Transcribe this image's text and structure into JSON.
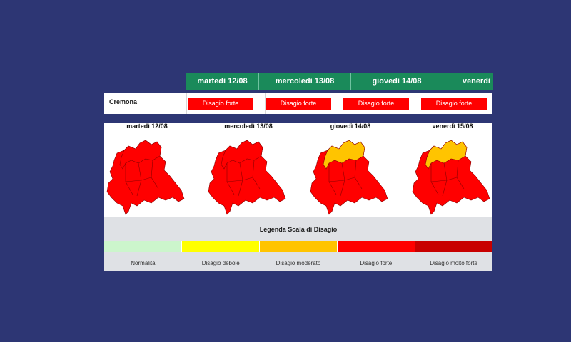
{
  "days": [
    "martedì 12/08",
    "mercoledì 13/08",
    "giovedì 14/08",
    "venerdì"
  ],
  "city": {
    "name": "Cremona",
    "badges": [
      "Disagio forte",
      "Disagio forte",
      "Disagio forte",
      "Disagio forte"
    ],
    "badge_color": "#ff0000"
  },
  "maps": [
    {
      "title": "martedì 12/08",
      "north_level": "Disagio forte"
    },
    {
      "title": "mercoledì 13/08",
      "north_level": "Disagio forte"
    },
    {
      "title": "giovedì 14/08",
      "north_level": "Disagio moderato"
    },
    {
      "title": "venerdì 15/08",
      "north_level": "Disagio moderato"
    }
  ],
  "legend": {
    "title": "Legenda Scala di Disagio",
    "levels": [
      {
        "label": "Normalità",
        "color": "#ccf5cc"
      },
      {
        "label": "Disagio debole",
        "color": "#ffff00"
      },
      {
        "label": "Disagio moderato",
        "color": "#ffc400"
      },
      {
        "label": "Disagio forte",
        "color": "#ff0000"
      },
      {
        "label": "Disagio molto forte",
        "color": "#c80000"
      }
    ]
  }
}
